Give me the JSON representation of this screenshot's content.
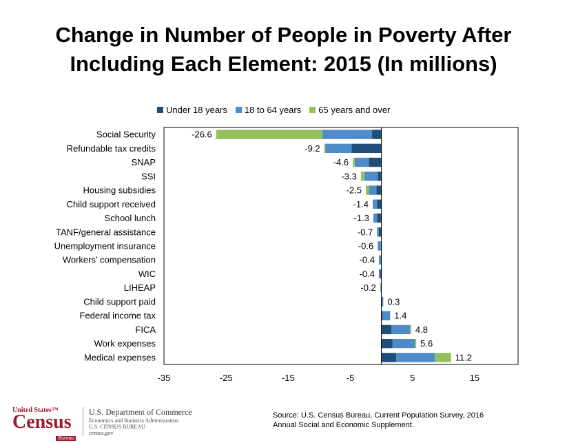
{
  "chart_data": {
    "type": "bar",
    "title_line1": "Change in Number of People in Poverty After",
    "title_line2": "Including Each Element: 2015 (In millions)",
    "orientation": "horizontal",
    "stacked": true,
    "legend_position": "top",
    "xlim": [
      -35,
      22
    ],
    "xticks": [
      "-35",
      "-25",
      "-15",
      "-5",
      "5",
      "15"
    ],
    "tick_values": [
      -35,
      -25,
      -15,
      -5,
      5,
      15
    ],
    "series": [
      {
        "name": "Under 18 years",
        "color": "#1f4e79"
      },
      {
        "name": "18 to 64 years",
        "color": "#4f8ac9"
      },
      {
        "name": "65 years and over",
        "color": "#92c15c"
      }
    ],
    "rows": [
      {
        "label": "Social Security",
        "total_label": "-26.6",
        "values": [
          -1.5,
          -8.0,
          -17.1
        ]
      },
      {
        "label": "Refundable tax credits",
        "total_label": "-9.2",
        "values": [
          -4.8,
          -4.2,
          -0.2
        ]
      },
      {
        "label": "SNAP",
        "total_label": "-4.6",
        "values": [
          -2.0,
          -2.3,
          -0.3
        ]
      },
      {
        "label": "SSI",
        "total_label": "-3.3",
        "values": [
          -0.6,
          -2.1,
          -0.6
        ]
      },
      {
        "label": "Housing subsidies",
        "total_label": "-2.5",
        "values": [
          -0.8,
          -1.2,
          -0.5
        ]
      },
      {
        "label": "Child support received",
        "total_label": "-1.4",
        "values": [
          -0.7,
          -0.7,
          0.0
        ]
      },
      {
        "label": "School lunch",
        "total_label": "-1.3",
        "values": [
          -0.7,
          -0.6,
          0.0
        ]
      },
      {
        "label": "TANF/general assistance",
        "total_label": "-0.7",
        "values": [
          -0.4,
          -0.3,
          0.0
        ]
      },
      {
        "label": "Unemployment insurance",
        "total_label": "-0.6",
        "values": [
          -0.1,
          -0.5,
          0.0
        ]
      },
      {
        "label": "Workers' compensation",
        "total_label": "-0.4",
        "values": [
          -0.1,
          -0.3,
          0.0
        ]
      },
      {
        "label": "WIC",
        "total_label": "-0.4",
        "values": [
          -0.2,
          -0.2,
          0.0
        ]
      },
      {
        "label": "LIHEAP",
        "total_label": "-0.2",
        "values": [
          -0.05,
          -0.1,
          -0.05
        ]
      },
      {
        "label": "Child support paid",
        "total_label": "0.3",
        "values": [
          0.1,
          0.2,
          0.0
        ]
      },
      {
        "label": "Federal income tax",
        "total_label": "1.4",
        "values": [
          0.2,
          1.2,
          0.0
        ]
      },
      {
        "label": "FICA",
        "total_label": "4.8",
        "values": [
          1.6,
          3.0,
          0.2
        ]
      },
      {
        "label": "Work expenses",
        "total_label": "5.6",
        "values": [
          1.8,
          3.6,
          0.2
        ]
      },
      {
        "label": "Medical expenses",
        "total_label": "11.2",
        "values": [
          2.4,
          6.2,
          2.6
        ]
      }
    ]
  },
  "footer": {
    "logo_top": "United States",
    "logo_mark": "™",
    "logo_main": "Census",
    "logo_bureau": "Bureau",
    "dept_main": "U.S. Department of Commerce",
    "dept_line1": "Economics and Statistics Administration",
    "dept_line2": "U.S. CENSUS BUREAU",
    "dept_line3": "census.gov",
    "source_line1": "Source: U.S. Census Bureau, Current Population Survey, 2016",
    "source_line2": "Annual Social and Economic Supplement."
  }
}
